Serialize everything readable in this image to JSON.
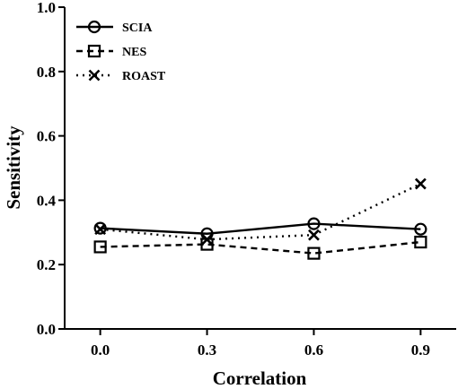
{
  "chart_data": {
    "type": "line",
    "title": "",
    "xlabel": "Correlation",
    "ylabel": "Sensitivity",
    "x": [
      0.0,
      0.3,
      0.6,
      0.9
    ],
    "x_tick_labels": [
      "0.0",
      "0.3",
      "0.6",
      "0.9"
    ],
    "y_tick_labels": [
      "0.0",
      "0.2",
      "0.4",
      "0.6",
      "0.8",
      "1.0"
    ],
    "y_ticks": [
      0.0,
      0.2,
      0.4,
      0.6,
      0.8,
      1.0
    ],
    "ylim": [
      0.0,
      1.0
    ],
    "xlim": [
      -0.1,
      1.0
    ],
    "grid": false,
    "legend_position": "top-left",
    "series": [
      {
        "name": "SCIA",
        "values": [
          0.313,
          0.296,
          0.327,
          0.31
        ],
        "line_style": "solid",
        "marker": "circle"
      },
      {
        "name": "NES",
        "values": [
          0.255,
          0.263,
          0.235,
          0.27
        ],
        "line_style": "dashed",
        "marker": "square"
      },
      {
        "name": "ROAST",
        "values": [
          0.31,
          0.278,
          0.292,
          0.451
        ],
        "line_style": "dotted",
        "marker": "x"
      }
    ]
  }
}
